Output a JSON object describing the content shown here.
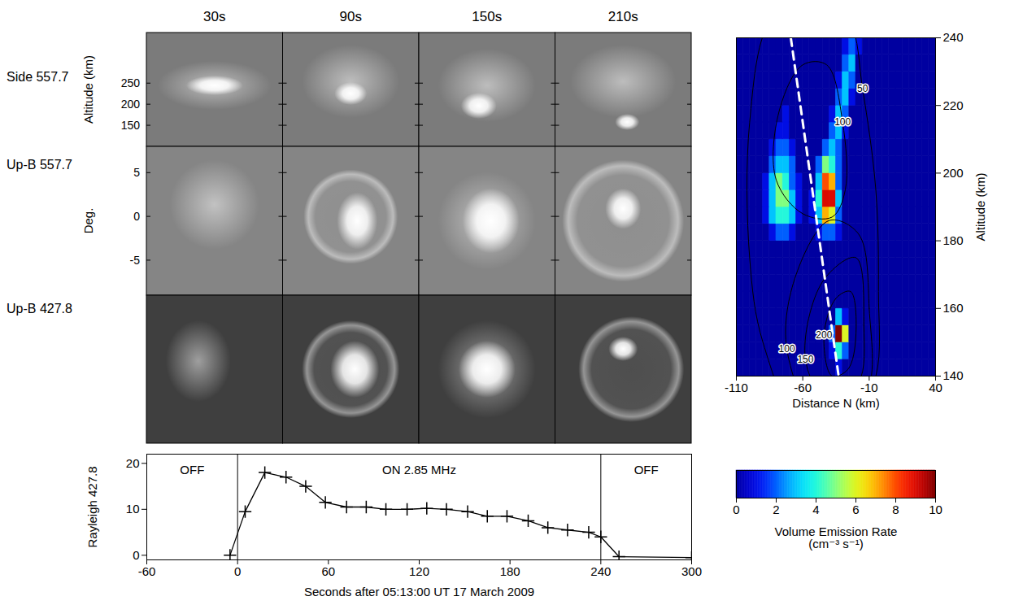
{
  "chart_data": [
    {
      "type": "image_grid",
      "column_titles": [
        "30s",
        "90s",
        "150s",
        "210s"
      ],
      "rows": [
        {
          "label": "Side 557.7",
          "axis_label": "Altitude (km)",
          "ylim": [
            100,
            370
          ],
          "yticks": [
            150,
            200,
            250
          ]
        },
        {
          "label": "Up-B 557.7",
          "axis_label": "Deg.",
          "ylim": [
            -9,
            8
          ],
          "yticks": [
            -5,
            0,
            5
          ]
        },
        {
          "label": "Up-B 427.8"
        }
      ]
    },
    {
      "type": "line",
      "x": [
        -5,
        5,
        18,
        32,
        45,
        58,
        72,
        85,
        98,
        112,
        125,
        138,
        152,
        165,
        178,
        192,
        205,
        218,
        232,
        240,
        252,
        300
      ],
      "values": [
        0,
        9.5,
        18,
        17,
        15,
        11.5,
        10.5,
        10.5,
        10,
        10,
        10.2,
        10,
        9.5,
        8.5,
        8.5,
        7.5,
        6,
        5.5,
        5,
        4,
        -0.3,
        -0.5
      ],
      "color": "#000000",
      "marker": "plus",
      "xlim": [
        -60,
        300
      ],
      "xticks": [
        -60,
        0,
        60,
        120,
        180,
        240,
        300
      ],
      "ylim": [
        -1,
        22
      ],
      "yticks": [
        0,
        10,
        20
      ],
      "xlabel": "Seconds after 05:13:00 UT 17 March 2009",
      "ylabel": "Rayleigh 427.8",
      "vertical_lines": [
        0,
        240
      ],
      "annotations": [
        "OFF",
        "ON 2.85 MHz",
        "OFF"
      ]
    },
    {
      "type": "heatmap",
      "x_bins": [
        -110,
        -105,
        -100,
        -95,
        -90,
        -85,
        -80,
        -75,
        -70,
        -65,
        -60,
        -55,
        -50,
        -45,
        -40,
        -35,
        -30,
        -25,
        -20,
        -15,
        -10,
        -5,
        0,
        5,
        10,
        15,
        20,
        25,
        30,
        35,
        40
      ],
      "y_bins": [
        140,
        145,
        150,
        155,
        160,
        165,
        170,
        175,
        180,
        185,
        190,
        195,
        200,
        205,
        210,
        215,
        220,
        225,
        230,
        235,
        240
      ],
      "z": [
        [
          0,
          0,
          0,
          0,
          0,
          0,
          0,
          0,
          0,
          0,
          0,
          0,
          0,
          0,
          0,
          1,
          0,
          0,
          0,
          0,
          0,
          0,
          0,
          0,
          0,
          0,
          0,
          0,
          0,
          0
        ],
        [
          0,
          0,
          0,
          0,
          0,
          0,
          0,
          0,
          0,
          0,
          0,
          0,
          0,
          0,
          1,
          4,
          2,
          0,
          0,
          0,
          0,
          0,
          0,
          0,
          0,
          0,
          0,
          0,
          0,
          0
        ],
        [
          0,
          0,
          0,
          0,
          0,
          0,
          0,
          0,
          0,
          0,
          0,
          0,
          0,
          0,
          2,
          10,
          6,
          0,
          0,
          0,
          0,
          0,
          0,
          0,
          0,
          0,
          0,
          0,
          0,
          0
        ],
        [
          0,
          0,
          0,
          0,
          0,
          0,
          0,
          0,
          0,
          0,
          0,
          0,
          0,
          0,
          0,
          3,
          1,
          0,
          0,
          0,
          0,
          0,
          0,
          0,
          0,
          0,
          0,
          0,
          0,
          0
        ],
        [
          0,
          0,
          0,
          0,
          0,
          0,
          0,
          0,
          0,
          0,
          0,
          0,
          0,
          0,
          0,
          0,
          0,
          0,
          0,
          0,
          0,
          0,
          0,
          0,
          0,
          0,
          0,
          0,
          0,
          0
        ],
        [
          0,
          0,
          0,
          0,
          0,
          0,
          0,
          0,
          0,
          0,
          0,
          0,
          0,
          0,
          0,
          0,
          0,
          0,
          0,
          0,
          0,
          0,
          0,
          0,
          0,
          0,
          0,
          0,
          0,
          0
        ],
        [
          0,
          0,
          0,
          0,
          0,
          0,
          0,
          0,
          0,
          0,
          0,
          0,
          0,
          0,
          0,
          0,
          0,
          0,
          0,
          0,
          0,
          0,
          0,
          0,
          0,
          0,
          0,
          0,
          0,
          0
        ],
        [
          0,
          0,
          0,
          0,
          0,
          0,
          0,
          0,
          0,
          0,
          0,
          0,
          0,
          0,
          0,
          0,
          0,
          0,
          0,
          0,
          0,
          0,
          0,
          0,
          0,
          0,
          0,
          0,
          0,
          0
        ],
        [
          0,
          0,
          0,
          0,
          0,
          1,
          2,
          2,
          1,
          0,
          0,
          0,
          1,
          2,
          2,
          1,
          0,
          0,
          0,
          0,
          0,
          0,
          0,
          0,
          0,
          0,
          0,
          0,
          0,
          0
        ],
        [
          0,
          0,
          0,
          0,
          1,
          3,
          4,
          4,
          3,
          1,
          0,
          1,
          3,
          7,
          6,
          2,
          0,
          0,
          0,
          0,
          0,
          0,
          0,
          0,
          0,
          0,
          0,
          0,
          0,
          0
        ],
        [
          0,
          0,
          0,
          0,
          1,
          3,
          5,
          5,
          3,
          1,
          0,
          1,
          4,
          9,
          9,
          3,
          0,
          0,
          0,
          0,
          0,
          0,
          0,
          0,
          0,
          0,
          0,
          0,
          0,
          0
        ],
        [
          0,
          0,
          0,
          0,
          1,
          3,
          5,
          4,
          2,
          1,
          0,
          0,
          3,
          8,
          7,
          2,
          0,
          0,
          0,
          0,
          0,
          0,
          0,
          0,
          0,
          0,
          0,
          0,
          0,
          0
        ],
        [
          0,
          0,
          0,
          0,
          0,
          2,
          3,
          3,
          2,
          0,
          0,
          0,
          2,
          5,
          4,
          2,
          0,
          0,
          0,
          0,
          0,
          0,
          0,
          0,
          0,
          0,
          0,
          0,
          0,
          0
        ],
        [
          0,
          0,
          0,
          0,
          0,
          1,
          2,
          2,
          1,
          0,
          0,
          0,
          0,
          2,
          3,
          2,
          0,
          0,
          0,
          0,
          0,
          0,
          0,
          0,
          0,
          0,
          0,
          0,
          0,
          0
        ],
        [
          0,
          0,
          0,
          0,
          0,
          0,
          1,
          1,
          0,
          0,
          0,
          0,
          0,
          0,
          2,
          3,
          1,
          0,
          0,
          0,
          0,
          0,
          0,
          0,
          0,
          0,
          0,
          0,
          0,
          0
        ],
        [
          0,
          0,
          0,
          0,
          0,
          0,
          0,
          1,
          0,
          0,
          0,
          0,
          0,
          0,
          1,
          3,
          2,
          0,
          0,
          0,
          0,
          0,
          0,
          0,
          0,
          0,
          0,
          0,
          0,
          0
        ],
        [
          0,
          0,
          0,
          0,
          0,
          0,
          0,
          0,
          0,
          0,
          0,
          0,
          0,
          0,
          0,
          2,
          3,
          1,
          0,
          0,
          0,
          0,
          0,
          0,
          0,
          0,
          0,
          0,
          0,
          0
        ],
        [
          0,
          0,
          0,
          0,
          0,
          0,
          0,
          0,
          0,
          0,
          0,
          0,
          0,
          0,
          0,
          1,
          3,
          2,
          0,
          0,
          0,
          0,
          0,
          0,
          0,
          0,
          0,
          0,
          0,
          0
        ],
        [
          0,
          0,
          0,
          0,
          0,
          0,
          0,
          0,
          0,
          0,
          0,
          0,
          0,
          0,
          0,
          0,
          2,
          3,
          0,
          0,
          0,
          0,
          0,
          0,
          0,
          0,
          0,
          0,
          0,
          0
        ],
        [
          0,
          0,
          0,
          0,
          0,
          0,
          0,
          0,
          0,
          0,
          0,
          0,
          0,
          0,
          0,
          0,
          1,
          2,
          1,
          0,
          0,
          0,
          0,
          0,
          0,
          0,
          0,
          0,
          0,
          0
        ]
      ],
      "xlim": [
        -110,
        40
      ],
      "xticks": [
        -110,
        -60,
        -10,
        40
      ],
      "ylim": [
        140,
        240
      ],
      "yticks": [
        140,
        160,
        180,
        200,
        220,
        240
      ],
      "xlabel": "Distance N (km)",
      "ylabel": "Altitude (km)",
      "colorbar": {
        "label": "Volume Emission Rate (cm⁻³ s⁻¹)",
        "range": [
          0,
          10
        ],
        "ticks": [
          0,
          2,
          4,
          6,
          8,
          10
        ]
      },
      "contours": [
        {
          "level": 50,
          "points": [
            [
              -25,
              245
            ],
            [
              -15,
              225
            ],
            [
              -5,
              195
            ],
            [
              -3,
              165
            ],
            [
              -5,
              140
            ],
            [
              -25,
              125
            ],
            [
              -60,
              125
            ],
            [
              -90,
              150
            ],
            [
              -100,
              175
            ],
            [
              -100,
              215
            ],
            [
              -85,
              245
            ],
            [
              -55,
              255
            ]
          ],
          "label_at": [
            -15,
            225
          ]
        },
        {
          "level": 100,
          "points": [
            [
              -42,
              232
            ],
            [
              -30,
              215
            ],
            [
              -28,
              195
            ],
            [
              -38,
              187
            ],
            [
              -60,
              188
            ],
            [
              -80,
              198
            ],
            [
              -78,
              218
            ],
            [
              -60,
              232
            ]
          ],
          "label_at": [
            -30,
            215
          ]
        },
        {
          "level": 100,
          "points": [
            [
              -18,
              182
            ],
            [
              -10,
              160
            ],
            [
              -12,
              135
            ],
            [
              -45,
              125
            ],
            [
              -72,
              148
            ],
            [
              -65,
              170
            ],
            [
              -40,
              186
            ]
          ],
          "label_at": [
            -72,
            148
          ]
        },
        {
          "level": 150,
          "points": [
            [
              -20,
              175
            ],
            [
              -14,
              155
            ],
            [
              -18,
              138
            ],
            [
              -40,
              132
            ],
            [
              -58,
              145
            ],
            [
              -45,
              168
            ]
          ],
          "label_at": [
            -58,
            145
          ]
        },
        {
          "level": 200,
          "points": [
            [
              -24,
              165
            ],
            [
              -20,
              152
            ],
            [
              -26,
              142
            ],
            [
              -38,
              140
            ],
            [
              -44,
              152
            ],
            [
              -35,
              163
            ]
          ],
          "label_at": [
            -44,
            152
          ]
        }
      ],
      "dashed_line": {
        "x": [
          -69,
          -33
        ],
        "y": [
          240,
          140
        ]
      }
    }
  ]
}
